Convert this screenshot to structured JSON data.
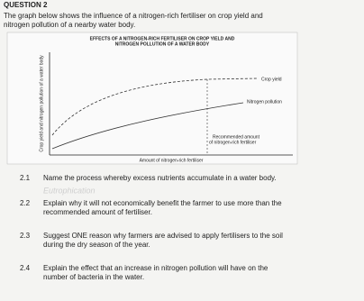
{
  "heading": "QUESTION 2",
  "intro": [
    "The graph below shows the influence of a nitrogen-rich fertiliser on crop yield and",
    "nitrogen pollution of a nearby water body."
  ],
  "figure": {
    "title": [
      "EFFECTS OF A NITROGEN-RICH FERTILISER ON CROP YIELD AND",
      "NITROGEN POLLUTION OF A WATER BODY"
    ],
    "y_label": "Crop yield and nitrogen pollution of a water body",
    "x_label": "Amount of nitrogen-rich fertiliser",
    "curve_labels": [
      "Crop yield",
      "Nitrogen pollution"
    ],
    "marker_label": [
      "Recommended amount",
      "of nitrogen-rich fertiliser"
    ]
  },
  "questions": [
    {
      "number": "2.1",
      "lines": [
        "Name the process whereby excess nutrients accumulate in a water body."
      ]
    },
    {
      "number": "2.2",
      "lines": [
        "Explain why it will not economically benefit the farmer to use more than the",
        "recommended amount of fertiliser."
      ]
    },
    {
      "number": "2.3",
      "lines": [
        "Suggest ONE reason why farmers are advised to apply fertilisers to the soil",
        "during the dry season of the year."
      ]
    },
    {
      "number": "2.4",
      "lines": [
        "Explain the effect that an increase in nitrogen pollution will have on the",
        "number of bacteria in the water."
      ]
    }
  ],
  "handwriting": "Eutrophication"
}
